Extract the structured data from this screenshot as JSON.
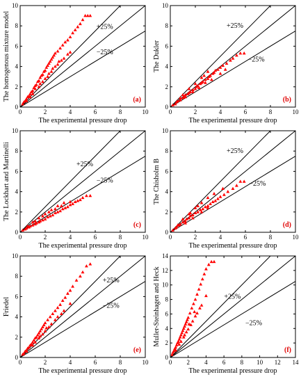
{
  "figure": {
    "point_color": "#ff0000",
    "line_color": "#000000",
    "label_color": "#e00000"
  },
  "chart_data": [
    {
      "type": "scatter",
      "panel_label": "(a)",
      "ylabel": "The homogenous mixture model",
      "xlabel": "The experimental pressure drop",
      "xlim": [
        0,
        10
      ],
      "ylim": [
        0,
        10
      ],
      "xticks": [
        "0",
        "2",
        "4",
        "6",
        "8",
        "10"
      ],
      "yticks": [
        "0",
        "2",
        "4",
        "6",
        "8",
        "10"
      ],
      "plus_label": "+25%",
      "minus_label": "−25%",
      "plus_slope": 1.25,
      "minus_slope": 0.75,
      "points": [
        [
          0.2,
          0.3
        ],
        [
          0.3,
          0.5
        ],
        [
          0.4,
          0.6
        ],
        [
          0.5,
          0.8
        ],
        [
          0.6,
          1.0
        ],
        [
          0.7,
          1.1
        ],
        [
          0.8,
          1.3
        ],
        [
          0.9,
          1.5
        ],
        [
          1.0,
          1.6
        ],
        [
          1.1,
          1.9
        ],
        [
          1.2,
          2.1
        ],
        [
          1.3,
          2.2
        ],
        [
          1.4,
          2.5
        ],
        [
          1.5,
          2.6
        ],
        [
          1.6,
          2.9
        ],
        [
          1.7,
          3.1
        ],
        [
          1.8,
          3.2
        ],
        [
          1.9,
          3.5
        ],
        [
          2.0,
          3.6
        ],
        [
          2.1,
          3.9
        ],
        [
          2.2,
          4.1
        ],
        [
          2.3,
          4.3
        ],
        [
          2.4,
          4.5
        ],
        [
          2.5,
          4.7
        ],
        [
          2.6,
          4.9
        ],
        [
          2.7,
          5.1
        ],
        [
          2.8,
          5.3
        ],
        [
          3.0,
          5.5
        ],
        [
          3.2,
          5.8
        ],
        [
          3.4,
          6.1
        ],
        [
          3.6,
          6.4
        ],
        [
          3.8,
          6.6
        ],
        [
          4.0,
          6.9
        ],
        [
          4.2,
          7.3
        ],
        [
          4.4,
          7.6
        ],
        [
          4.6,
          7.9
        ],
        [
          4.8,
          8.2
        ],
        [
          5.0,
          8.6
        ],
        [
          5.2,
          9.0
        ],
        [
          5.4,
          9.0
        ],
        [
          5.6,
          9.0
        ],
        [
          1.0,
          1.3
        ],
        [
          1.5,
          2.0
        ],
        [
          2.0,
          2.8
        ],
        [
          2.5,
          3.5
        ],
        [
          3.0,
          4.2
        ],
        [
          3.5,
          4.8
        ],
        [
          4.0,
          5.4
        ],
        [
          1.2,
          1.8
        ],
        [
          1.8,
          2.5
        ],
        [
          2.3,
          3.3
        ],
        [
          2.8,
          4.0
        ],
        [
          3.3,
          4.6
        ],
        [
          3.8,
          5.2
        ],
        [
          0.5,
          0.6
        ],
        [
          0.8,
          1.0
        ],
        [
          1.6,
          2.3
        ],
        [
          2.2,
          3.0
        ],
        [
          2.6,
          3.8
        ],
        [
          3.1,
          4.5
        ]
      ]
    },
    {
      "type": "scatter",
      "panel_label": "(b)",
      "ylabel": "The Dukler",
      "xlabel": "The experimental pressure drop",
      "xlim": [
        0,
        10
      ],
      "ylim": [
        0,
        10
      ],
      "xticks": [
        "0",
        "2",
        "4",
        "6",
        "8",
        "10"
      ],
      "yticks": [
        "0",
        "2",
        "4",
        "6",
        "8",
        "10"
      ],
      "plus_label": "+25%",
      "minus_label": "−25%",
      "plus_slope": 1.25,
      "minus_slope": 0.75,
      "points": [
        [
          0.2,
          0.2
        ],
        [
          0.4,
          0.3
        ],
        [
          0.5,
          0.5
        ],
        [
          0.6,
          0.6
        ],
        [
          0.8,
          0.7
        ],
        [
          1.0,
          0.9
        ],
        [
          1.1,
          1.0
        ],
        [
          1.2,
          1.2
        ],
        [
          1.4,
          1.3
        ],
        [
          1.5,
          1.4
        ],
        [
          1.6,
          1.5
        ],
        [
          1.8,
          1.7
        ],
        [
          2.0,
          1.8
        ],
        [
          2.1,
          2.0
        ],
        [
          2.2,
          2.1
        ],
        [
          2.4,
          2.3
        ],
        [
          2.5,
          2.4
        ],
        [
          2.6,
          2.5
        ],
        [
          2.8,
          2.7
        ],
        [
          3.0,
          2.8
        ],
        [
          3.1,
          3.0
        ],
        [
          3.2,
          3.1
        ],
        [
          3.4,
          3.3
        ],
        [
          3.5,
          3.4
        ],
        [
          3.6,
          3.6
        ],
        [
          3.8,
          3.7
        ],
        [
          4.0,
          3.9
        ],
        [
          4.2,
          4.1
        ],
        [
          4.5,
          4.3
        ],
        [
          4.8,
          4.6
        ],
        [
          5.0,
          4.8
        ],
        [
          5.3,
          5.1
        ],
        [
          5.6,
          5.3
        ],
        [
          5.9,
          5.3
        ],
        [
          1.5,
          1.8
        ],
        [
          2.0,
          2.3
        ],
        [
          2.5,
          2.9
        ],
        [
          3.0,
          3.5
        ],
        [
          1.2,
          1.0
        ],
        [
          1.8,
          1.5
        ],
        [
          2.3,
          1.9
        ],
        [
          2.8,
          2.4
        ],
        [
          3.3,
          2.7
        ],
        [
          4.0,
          3.3
        ],
        [
          4.4,
          3.7
        ],
        [
          0.8,
          0.9
        ],
        [
          1.0,
          1.2
        ],
        [
          2.7,
          3.1
        ]
      ]
    },
    {
      "type": "scatter",
      "panel_label": "(c)",
      "ylabel": "The Lockhart and Martinelli",
      "xlabel": "The experimental pressure drop",
      "xlim": [
        0,
        10
      ],
      "ylim": [
        0,
        10
      ],
      "xticks": [
        "0",
        "2",
        "4",
        "6",
        "8",
        "10"
      ],
      "yticks": [
        "0",
        "2",
        "4",
        "6",
        "8",
        "10"
      ],
      "plus_label": "+25%",
      "minus_label": "−25%",
      "plus_slope": 1.25,
      "minus_slope": 0.75,
      "points": [
        [
          0.2,
          0.2
        ],
        [
          0.4,
          0.3
        ],
        [
          0.5,
          0.4
        ],
        [
          0.7,
          0.5
        ],
        [
          0.8,
          0.6
        ],
        [
          1.0,
          0.7
        ],
        [
          1.2,
          0.8
        ],
        [
          1.3,
          0.9
        ],
        [
          1.5,
          1.0
        ],
        [
          1.6,
          1.1
        ],
        [
          1.8,
          1.2
        ],
        [
          2.0,
          1.3
        ],
        [
          2.2,
          1.5
        ],
        [
          2.4,
          1.6
        ],
        [
          2.6,
          1.7
        ],
        [
          2.8,
          1.9
        ],
        [
          3.0,
          2.0
        ],
        [
          3.2,
          2.1
        ],
        [
          3.4,
          2.3
        ],
        [
          3.6,
          2.4
        ],
        [
          3.8,
          2.5
        ],
        [
          4.0,
          2.7
        ],
        [
          4.2,
          2.8
        ],
        [
          4.4,
          3.0
        ],
        [
          4.6,
          3.1
        ],
        [
          4.8,
          3.2
        ],
        [
          5.0,
          3.4
        ],
        [
          5.3,
          3.6
        ],
        [
          5.6,
          3.6
        ],
        [
          1.0,
          1.0
        ],
        [
          1.5,
          1.4
        ],
        [
          2.0,
          1.8
        ],
        [
          2.5,
          2.2
        ],
        [
          3.0,
          2.6
        ],
        [
          3.5,
          2.9
        ],
        [
          1.2,
          1.1
        ],
        [
          2.3,
          2.0
        ],
        [
          2.8,
          2.3
        ],
        [
          3.3,
          2.6
        ],
        [
          0.6,
          0.6
        ],
        [
          1.8,
          1.6
        ],
        [
          4.0,
          3.0
        ]
      ]
    },
    {
      "type": "scatter",
      "panel_label": "(d)",
      "ylabel": "The Chisholm B",
      "xlabel": "The experimental pressure drop",
      "xlim": [
        0,
        10
      ],
      "ylim": [
        0,
        10
      ],
      "xticks": [
        "0",
        "2",
        "4",
        "6",
        "8",
        "10"
      ],
      "yticks": [
        "0",
        "2",
        "4",
        "6",
        "8",
        "10"
      ],
      "plus_label": "+25%",
      "minus_label": "−25%",
      "plus_slope": 1.25,
      "minus_slope": 0.75,
      "points": [
        [
          0.2,
          0.2
        ],
        [
          0.4,
          0.4
        ],
        [
          0.5,
          0.5
        ],
        [
          0.7,
          0.7
        ],
        [
          0.8,
          0.8
        ],
        [
          1.0,
          1.0
        ],
        [
          1.2,
          1.1
        ],
        [
          1.3,
          1.3
        ],
        [
          1.5,
          1.4
        ],
        [
          1.6,
          1.6
        ],
        [
          1.8,
          1.7
        ],
        [
          2.0,
          1.9
        ],
        [
          2.2,
          2.0
        ],
        [
          2.4,
          2.2
        ],
        [
          2.6,
          2.3
        ],
        [
          2.8,
          2.5
        ],
        [
          3.0,
          2.6
        ],
        [
          3.2,
          2.8
        ],
        [
          3.4,
          3.0
        ],
        [
          3.6,
          3.1
        ],
        [
          3.8,
          3.3
        ],
        [
          4.0,
          3.5
        ],
        [
          4.3,
          3.7
        ],
        [
          4.6,
          4.0
        ],
        [
          5.0,
          4.3
        ],
        [
          5.3,
          4.6
        ],
        [
          5.6,
          5.0
        ],
        [
          5.9,
          5.0
        ],
        [
          1.0,
          1.3
        ],
        [
          1.5,
          1.8
        ],
        [
          2.0,
          2.4
        ],
        [
          2.5,
          2.9
        ],
        [
          3.0,
          3.4
        ],
        [
          3.5,
          3.8
        ],
        [
          1.2,
          0.9
        ],
        [
          1.8,
          1.4
        ],
        [
          2.5,
          2.0
        ],
        [
          3.0,
          2.4
        ],
        [
          0.6,
          0.7
        ],
        [
          1.6,
          1.9
        ],
        [
          2.2,
          2.6
        ],
        [
          4.2,
          4.3
        ]
      ]
    },
    {
      "type": "scatter",
      "panel_label": "(e)",
      "ylabel": "Friedel",
      "xlabel": "The experimental pressure drop",
      "xlim": [
        0,
        10
      ],
      "ylim": [
        0,
        10
      ],
      "xticks": [
        "0",
        "2",
        "4",
        "6",
        "8",
        "10"
      ],
      "yticks": [
        "0",
        "2",
        "4",
        "6",
        "8",
        "10"
      ],
      "plus_label": "+25%",
      "minus_label": "−25%",
      "plus_slope": 1.25,
      "minus_slope": 0.75,
      "points": [
        [
          0.2,
          0.3
        ],
        [
          0.3,
          0.4
        ],
        [
          0.4,
          0.6
        ],
        [
          0.5,
          0.7
        ],
        [
          0.6,
          0.9
        ],
        [
          0.7,
          1.0
        ],
        [
          0.8,
          1.2
        ],
        [
          0.9,
          1.3
        ],
        [
          1.0,
          1.5
        ],
        [
          1.1,
          1.7
        ],
        [
          1.2,
          1.9
        ],
        [
          1.3,
          2.0
        ],
        [
          1.4,
          2.2
        ],
        [
          1.5,
          2.4
        ],
        [
          1.6,
          2.6
        ],
        [
          1.7,
          2.8
        ],
        [
          1.8,
          3.0
        ],
        [
          1.9,
          3.2
        ],
        [
          2.0,
          3.4
        ],
        [
          2.2,
          3.7
        ],
        [
          2.4,
          4.0
        ],
        [
          2.6,
          4.3
        ],
        [
          2.8,
          4.6
        ],
        [
          3.0,
          4.9
        ],
        [
          3.2,
          5.2
        ],
        [
          3.4,
          5.6
        ],
        [
          3.6,
          5.9
        ],
        [
          3.8,
          6.3
        ],
        [
          4.0,
          6.6
        ],
        [
          4.2,
          7.0
        ],
        [
          4.5,
          7.6
        ],
        [
          4.8,
          8.0
        ],
        [
          5.0,
          8.4
        ],
        [
          5.3,
          9.0
        ],
        [
          5.6,
          9.2
        ],
        [
          1.0,
          1.2
        ],
        [
          1.5,
          1.9
        ],
        [
          2.0,
          2.6
        ],
        [
          2.5,
          3.3
        ],
        [
          3.0,
          4.0
        ],
        [
          3.5,
          4.6
        ],
        [
          4.0,
          5.3
        ],
        [
          1.2,
          1.5
        ],
        [
          1.8,
          2.3
        ],
        [
          2.3,
          3.0
        ],
        [
          2.8,
          3.7
        ],
        [
          3.3,
          4.3
        ],
        [
          0.5,
          0.6
        ],
        [
          1.6,
          2.1
        ],
        [
          2.1,
          2.9
        ]
      ]
    },
    {
      "type": "scatter",
      "panel_label": "(f)",
      "ylabel": "Muller-Steinhagen and Heck",
      "xlabel": "The experimental pressure drop",
      "xlim": [
        0,
        14
      ],
      "ylim": [
        0,
        14
      ],
      "xticks": [
        "0",
        "2",
        "4",
        "6",
        "8",
        "10",
        "12",
        "14"
      ],
      "yticks": [
        "0",
        "2",
        "4",
        "6",
        "8",
        "10",
        "12",
        "14"
      ],
      "plus_label": "+25%",
      "minus_label": "−25%",
      "plus_slope": 1.25,
      "minus_slope": 0.75,
      "points": [
        [
          0.2,
          0.4
        ],
        [
          0.3,
          0.7
        ],
        [
          0.4,
          0.9
        ],
        [
          0.5,
          1.2
        ],
        [
          0.6,
          1.4
        ],
        [
          0.7,
          1.7
        ],
        [
          0.8,
          2.0
        ],
        [
          0.9,
          2.2
        ],
        [
          1.0,
          2.5
        ],
        [
          1.1,
          2.8
        ],
        [
          1.2,
          3.1
        ],
        [
          1.3,
          3.4
        ],
        [
          1.4,
          3.7
        ],
        [
          1.5,
          4.0
        ],
        [
          1.6,
          4.3
        ],
        [
          1.7,
          4.6
        ],
        [
          1.8,
          4.9
        ],
        [
          1.9,
          5.2
        ],
        [
          2.0,
          5.5
        ],
        [
          2.2,
          6.1
        ],
        [
          2.4,
          6.8
        ],
        [
          2.6,
          7.4
        ],
        [
          2.8,
          8.0
        ],
        [
          3.0,
          8.7
        ],
        [
          3.2,
          9.4
        ],
        [
          3.4,
          10.1
        ],
        [
          3.6,
          10.8
        ],
        [
          3.8,
          11.5
        ],
        [
          4.0,
          12.2
        ],
        [
          4.3,
          12.8
        ],
        [
          4.6,
          13.2
        ],
        [
          4.9,
          13.2
        ],
        [
          1.0,
          1.8
        ],
        [
          1.5,
          2.8
        ],
        [
          2.0,
          3.9
        ],
        [
          2.5,
          5.0
        ],
        [
          3.0,
          6.1
        ],
        [
          3.5,
          7.2
        ],
        [
          4.0,
          8.5
        ],
        [
          1.2,
          2.2
        ],
        [
          1.8,
          3.5
        ],
        [
          2.3,
          4.5
        ],
        [
          2.8,
          5.7
        ],
        [
          3.3,
          6.8
        ],
        [
          0.6,
          1.0
        ],
        [
          1.6,
          3.1
        ],
        [
          2.1,
          4.6
        ],
        [
          2.7,
          6.3
        ]
      ]
    }
  ]
}
